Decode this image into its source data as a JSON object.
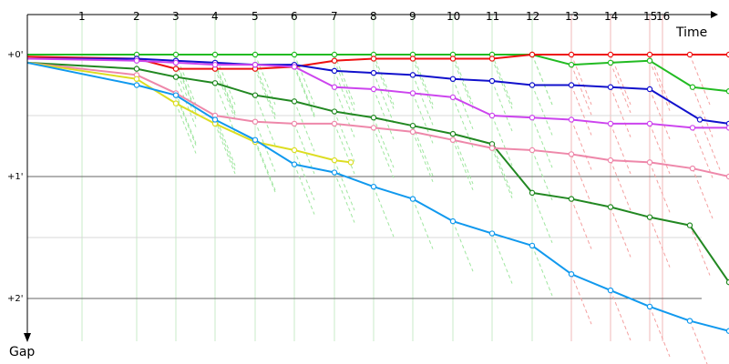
{
  "chart_data": {
    "type": "line",
    "xlabel": "Time",
    "ylabel": "Gap",
    "lap_markers": [
      {
        "label": "1",
        "x": 90
      },
      {
        "label": "2",
        "x": 150
      },
      {
        "label": "3",
        "x": 193
      },
      {
        "label": "4",
        "x": 236
      },
      {
        "label": "5",
        "x": 280
      },
      {
        "label": "6",
        "x": 323
      },
      {
        "label": "7",
        "x": 367
      },
      {
        "label": "8",
        "x": 410
      },
      {
        "label": "9",
        "x": 453
      },
      {
        "label": "10",
        "x": 497
      },
      {
        "label": "11",
        "x": 540
      },
      {
        "label": "12",
        "x": 584
      },
      {
        "label": "13",
        "x": 627
      },
      {
        "label": "14",
        "x": 670
      },
      {
        "label": "15",
        "x": 713
      },
      {
        "label": "16",
        "x": 727
      }
    ],
    "y_ticks": [
      {
        "label": "+0'",
        "y": 0
      },
      {
        "label": "+1'",
        "y": 60
      },
      {
        "label": "+2'",
        "y": 120
      }
    ],
    "ylim": [
      0,
      140
    ],
    "xlim": [
      30,
      800
    ],
    "grid": true,
    "series": [
      {
        "color": "#22bb22",
        "points": [
          [
            30,
            0
          ],
          [
            150,
            0
          ],
          [
            193,
            0
          ],
          [
            236,
            0
          ],
          [
            280,
            0
          ],
          [
            323,
            0
          ],
          [
            367,
            0
          ],
          [
            410,
            0
          ],
          [
            453,
            0
          ],
          [
            497,
            0
          ],
          [
            540,
            0
          ],
          [
            584,
            0
          ],
          [
            627,
            5
          ],
          [
            670,
            4
          ],
          [
            713,
            3
          ],
          [
            760,
            16
          ],
          [
            800,
            18
          ]
        ]
      },
      {
        "color": "#ee1111",
        "points": [
          [
            30,
            1
          ],
          [
            150,
            2
          ],
          [
            193,
            7
          ],
          [
            236,
            7
          ],
          [
            280,
            7
          ],
          [
            323,
            6
          ],
          [
            367,
            3
          ],
          [
            410,
            2
          ],
          [
            453,
            2
          ],
          [
            497,
            2
          ],
          [
            540,
            2
          ],
          [
            584,
            0
          ],
          [
            627,
            0
          ],
          [
            670,
            0
          ],
          [
            713,
            0
          ],
          [
            757,
            0
          ],
          [
            800,
            0
          ]
        ]
      },
      {
        "color": "#1111cc",
        "points": [
          [
            30,
            2
          ],
          [
            150,
            2
          ],
          [
            193,
            3
          ],
          [
            236,
            4
          ],
          [
            280,
            5
          ],
          [
            323,
            5
          ],
          [
            367,
            8
          ],
          [
            410,
            9
          ],
          [
            453,
            10
          ],
          [
            497,
            12
          ],
          [
            540,
            13
          ],
          [
            584,
            15
          ],
          [
            627,
            15
          ],
          [
            670,
            16
          ],
          [
            713,
            17
          ],
          [
            768,
            32
          ],
          [
            800,
            34
          ]
        ]
      },
      {
        "color": "#cc44ee",
        "points": [
          [
            30,
            2
          ],
          [
            150,
            3
          ],
          [
            193,
            4
          ],
          [
            236,
            5
          ],
          [
            280,
            5
          ],
          [
            323,
            6
          ],
          [
            367,
            16
          ],
          [
            410,
            17
          ],
          [
            453,
            19
          ],
          [
            497,
            21
          ],
          [
            540,
            30
          ],
          [
            584,
            31
          ],
          [
            627,
            32
          ],
          [
            670,
            34
          ],
          [
            713,
            34
          ],
          [
            760,
            36
          ],
          [
            800,
            36
          ]
        ]
      },
      {
        "color": "#228822",
        "points": [
          [
            30,
            4
          ],
          [
            150,
            7
          ],
          [
            193,
            11
          ],
          [
            236,
            14
          ],
          [
            280,
            20
          ],
          [
            323,
            23
          ],
          [
            367,
            28
          ],
          [
            410,
            31
          ],
          [
            453,
            35
          ],
          [
            497,
            39
          ],
          [
            540,
            44
          ],
          [
            584,
            68
          ],
          [
            627,
            71
          ],
          [
            670,
            75
          ],
          [
            713,
            80
          ],
          [
            757,
            84
          ],
          [
            800,
            112
          ]
        ]
      },
      {
        "color": "#ee88aa",
        "points": [
          [
            30,
            4
          ],
          [
            150,
            10
          ],
          [
            193,
            19
          ],
          [
            236,
            30
          ],
          [
            280,
            33
          ],
          [
            323,
            34
          ],
          [
            367,
            34
          ],
          [
            410,
            36
          ],
          [
            453,
            38
          ],
          [
            497,
            42
          ],
          [
            540,
            46
          ],
          [
            584,
            47
          ],
          [
            627,
            49
          ],
          [
            670,
            52
          ],
          [
            713,
            53
          ],
          [
            760,
            56
          ],
          [
            800,
            60
          ]
        ]
      },
      {
        "color": "#dddd22",
        "points": [
          [
            30,
            4
          ],
          [
            150,
            12
          ],
          [
            193,
            24
          ],
          [
            236,
            34
          ],
          [
            280,
            43
          ],
          [
            323,
            47
          ],
          [
            367,
            52
          ],
          [
            385,
            53
          ]
        ]
      },
      {
        "color": "#1199ee",
        "points": [
          [
            30,
            4
          ],
          [
            150,
            15
          ],
          [
            193,
            20
          ],
          [
            236,
            32
          ],
          [
            280,
            42
          ],
          [
            323,
            54
          ],
          [
            367,
            58
          ],
          [
            410,
            65
          ],
          [
            453,
            71
          ],
          [
            497,
            82
          ],
          [
            540,
            88
          ],
          [
            584,
            94
          ],
          [
            627,
            108
          ],
          [
            670,
            116
          ],
          [
            713,
            124
          ],
          [
            757,
            131
          ],
          [
            800,
            136
          ]
        ]
      }
    ]
  }
}
